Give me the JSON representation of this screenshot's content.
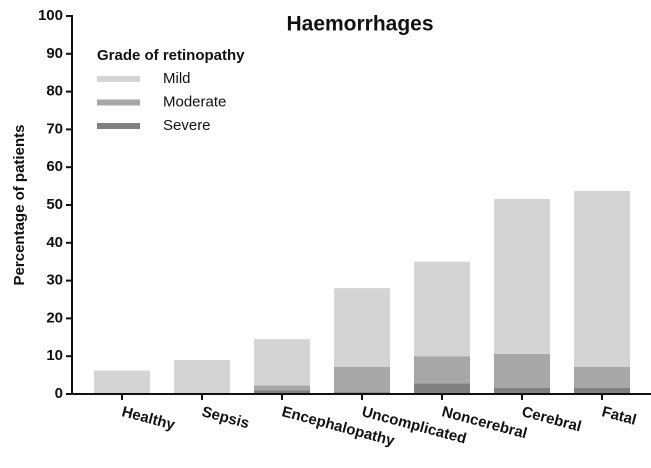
{
  "chart_data": {
    "type": "stacked_bar",
    "title": "Haemorrhages",
    "ylabel": "Percentage of patients",
    "legend_title": "Grade of retinopathy",
    "categories": [
      "Healthy",
      "Sepsis",
      "Encephalopathy",
      "Uncomplicated",
      "Noncerebral",
      "Cerebral",
      "Fatal"
    ],
    "series": [
      {
        "name": "Mild",
        "color": "#d4d4d4",
        "values": [
          6.2,
          9,
          12.2,
          20.8,
          25,
          41,
          46.5
        ]
      },
      {
        "name": "Moderate",
        "color": "#a7a7a7",
        "values": [
          0,
          0,
          1.3,
          6.7,
          7.2,
          9,
          5.6
        ]
      },
      {
        "name": "Severe",
        "color": "#808080",
        "values": [
          0,
          0,
          1,
          0.5,
          2.8,
          1.6,
          1.6
        ]
      }
    ],
    "ylim": [
      0,
      100
    ],
    "yticks": [
      0,
      10,
      20,
      30,
      40,
      50,
      60,
      70,
      80,
      90,
      100
    ],
    "legend": "upper left"
  }
}
